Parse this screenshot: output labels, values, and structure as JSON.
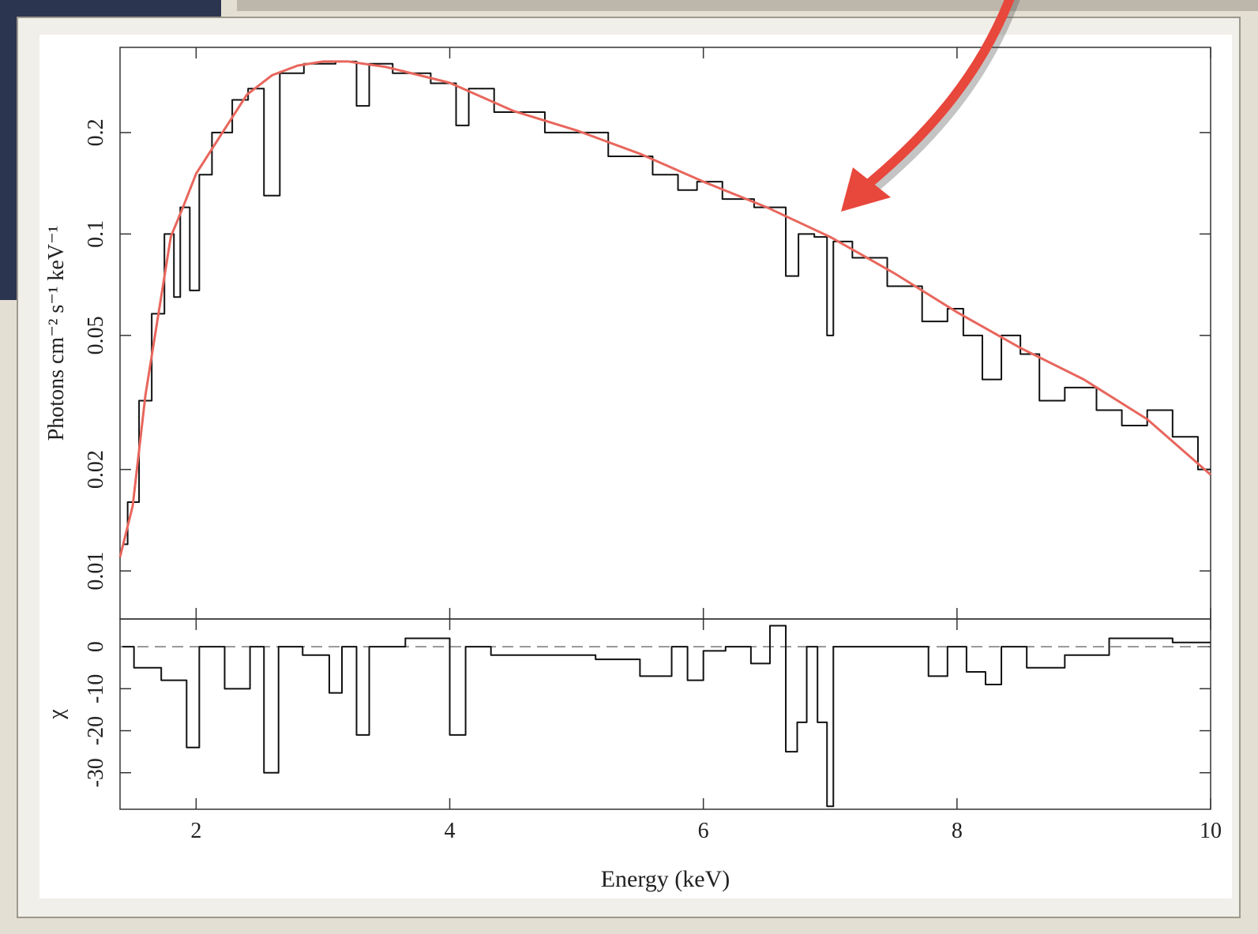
{
  "chart_data": [
    {
      "type": "line",
      "ylabel": "Photons cm⁻² s⁻¹ keV⁻¹",
      "log_y": true,
      "xlim": [
        1.4,
        10
      ],
      "xticks": [
        2,
        4,
        6,
        8,
        10
      ],
      "ylim": [
        0.0072,
        0.358
      ],
      "yticks": [
        0.01,
        0.02,
        0.05,
        0.1,
        0.2
      ],
      "series": [
        {
          "color": "#111111",
          "step": true,
          "x": [
            1.42,
            1.5,
            1.6,
            1.7,
            1.8,
            1.85,
            1.9,
            2.0,
            2.05,
            2.2,
            2.37,
            2.45,
            2.62,
            2.7,
            3.0,
            3.2,
            3.33,
            3.4,
            3.7,
            4.0,
            4.1,
            4.2,
            4.5,
            5.0,
            5.5,
            5.7,
            5.9,
            6.0,
            6.3,
            6.5,
            6.6,
            6.7,
            6.8,
            6.95,
            7.0,
            7.05,
            7.3,
            7.6,
            7.85,
            8.0,
            8.1,
            8.3,
            8.4,
            8.6,
            8.7,
            9.0,
            9.2,
            9.4,
            9.6,
            9.8,
            10.0
          ],
          "values": [
            0.012,
            0.016,
            0.032,
            0.058,
            0.1,
            0.065,
            0.12,
            0.068,
            0.15,
            0.2,
            0.25,
            0.27,
            0.13,
            0.3,
            0.32,
            0.325,
            0.24,
            0.32,
            0.3,
            0.28,
            0.21,
            0.27,
            0.23,
            0.2,
            0.17,
            0.15,
            0.135,
            0.143,
            0.127,
            0.12,
            0.12,
            0.075,
            0.1,
            0.098,
            0.05,
            0.095,
            0.085,
            0.07,
            0.055,
            0.06,
            0.05,
            0.037,
            0.05,
            0.044,
            0.032,
            0.035,
            0.03,
            0.027,
            0.03,
            0.025,
            0.02
          ]
        },
        {
          "color": "#e8665c",
          "step": false,
          "x": [
            1.4,
            1.5,
            1.6,
            1.7,
            1.8,
            1.9,
            2.0,
            2.2,
            2.4,
            2.6,
            2.8,
            3.0,
            3.2,
            3.5,
            4.0,
            4.5,
            5.0,
            5.5,
            6.0,
            6.5,
            7.0,
            7.5,
            8.0,
            8.5,
            9.0,
            9.5,
            10.0
          ],
          "values": [
            0.011,
            0.0156,
            0.0332,
            0.057,
            0.098,
            0.121,
            0.151,
            0.198,
            0.259,
            0.296,
            0.316,
            0.325,
            0.325,
            0.313,
            0.281,
            0.232,
            0.203,
            0.173,
            0.143,
            0.12,
            0.098,
            0.0767,
            0.0586,
            0.0459,
            0.037,
            0.0282,
            0.0193
          ]
        }
      ]
    },
    {
      "type": "line",
      "xlabel": "Energy (keV)",
      "ylabel": "χ",
      "log_y": false,
      "xlim": [
        1.4,
        10
      ],
      "xticks": [
        2,
        4,
        6,
        8,
        10
      ],
      "ylim": [
        -38.7,
        6.6
      ],
      "yticks": [
        0,
        -10,
        -20,
        -30
      ],
      "reference_line": 0,
      "series": [
        {
          "color": "#111111",
          "step": true,
          "x": [
            1.42,
            1.6,
            1.85,
            2.0,
            2.05,
            2.4,
            2.45,
            2.62,
            2.68,
            3.0,
            3.1,
            3.2,
            3.33,
            3.4,
            3.9,
            4.1,
            4.15,
            4.5,
            5.0,
            5.3,
            5.7,
            5.8,
            5.95,
            6.05,
            6.3,
            6.45,
            6.6,
            6.7,
            6.78,
            6.85,
            6.95,
            7.0,
            7.05,
            7.5,
            7.7,
            7.85,
            8.0,
            8.15,
            8.3,
            8.4,
            8.7,
            9.0,
            9.4,
            10.0
          ],
          "values": [
            0,
            -5,
            -8,
            -24,
            0,
            -10,
            0,
            -30,
            0,
            -2,
            -11,
            0,
            -21,
            0,
            2,
            -21,
            0,
            -2,
            -2,
            -3,
            -7,
            0,
            -8,
            -1,
            0,
            -4,
            5,
            -25,
            -18,
            0,
            -18,
            -38,
            0,
            0,
            0,
            -7,
            0,
            -6,
            -9,
            0,
            -5,
            -2,
            2,
            1
          ]
        }
      ]
    }
  ]
}
